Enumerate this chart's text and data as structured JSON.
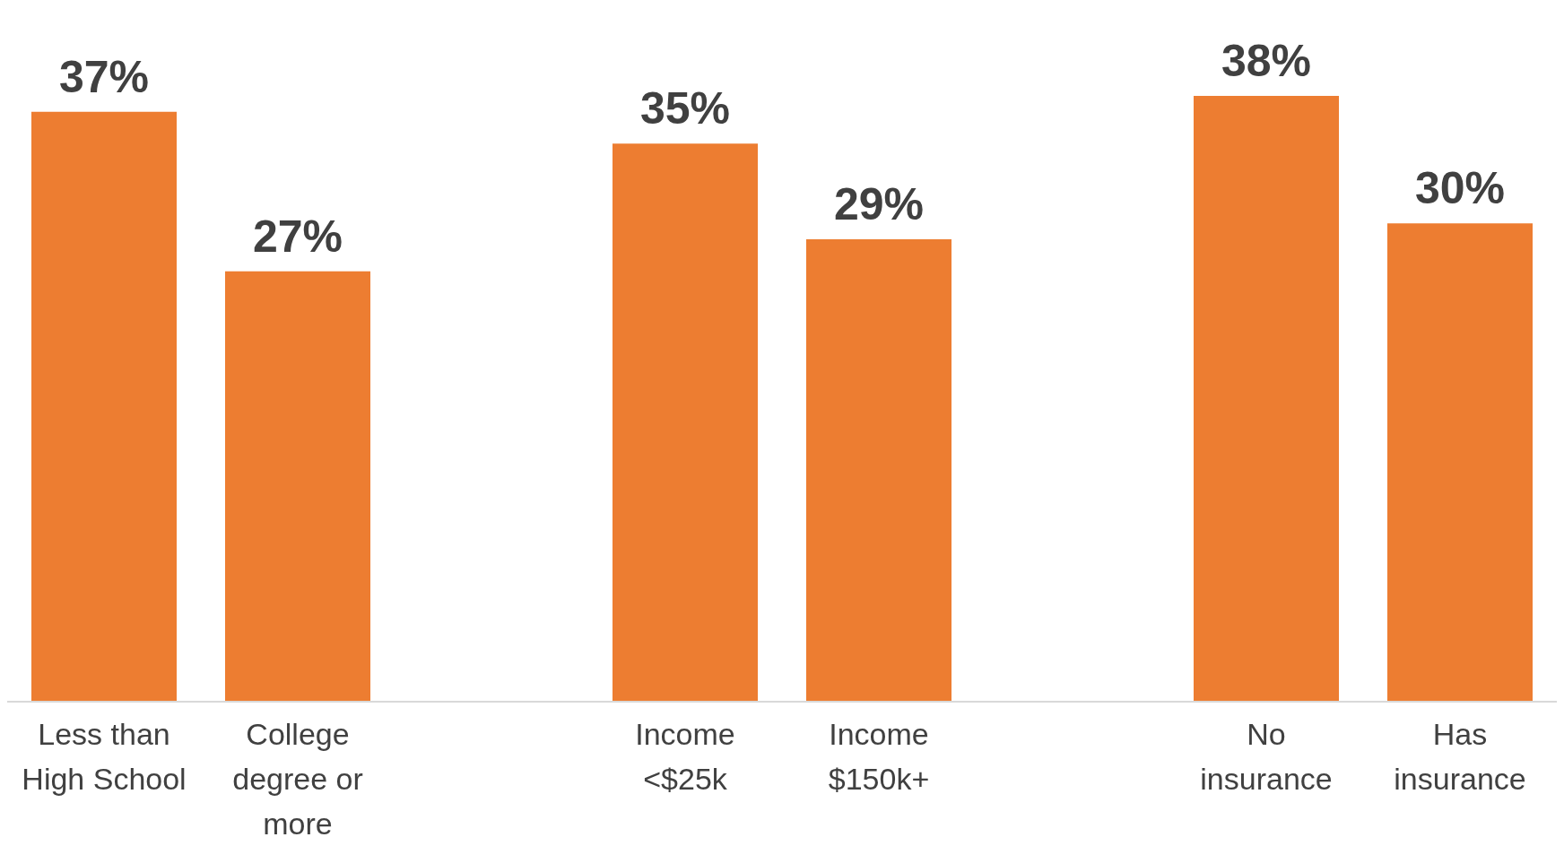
{
  "chart_data": {
    "type": "bar",
    "categories": [
      "Less than High School",
      "College degree or more",
      null,
      "Income <$25k",
      "Income $150k+",
      null,
      "No insurance",
      "Has insurance"
    ],
    "values": [
      37,
      27,
      null,
      35,
      29,
      null,
      38,
      30
    ],
    "color": "#ed7d31",
    "value_labels": [
      "37%",
      "27%",
      null,
      "35%",
      "29%",
      null,
      "38%",
      "30%"
    ]
  }
}
